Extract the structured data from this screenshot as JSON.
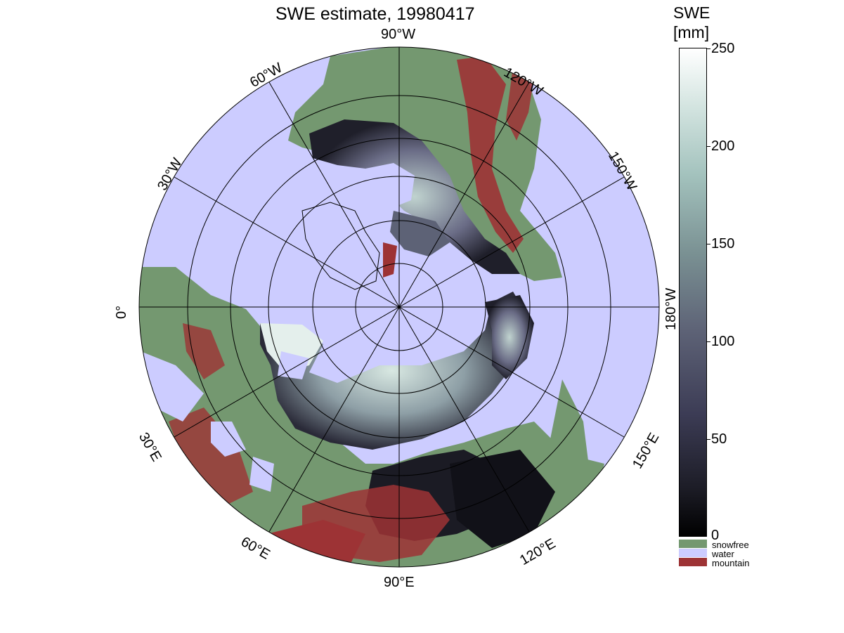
{
  "title": "SWE estimate, 19980417",
  "colorbar": {
    "title_line1": "SWE",
    "title_line2": "[mm]",
    "ticks": [
      "250",
      "200",
      "150",
      "100",
      "50",
      "0"
    ],
    "range": [
      0,
      250
    ],
    "colors": [
      "#000000",
      "#3c3c55",
      "#7a9193",
      "#d3e4e0",
      "#ffffff"
    ]
  },
  "legend": {
    "snowfree": {
      "label": "snowfree",
      "color": "#749870"
    },
    "water": {
      "label": "water",
      "color": "#ccccff"
    },
    "mountain": {
      "label": "mountain",
      "color": "#9d3335"
    }
  },
  "longitude_labels": {
    "w90": "90°W",
    "w120": "120°W",
    "w150": "150°W",
    "w180": "180°W",
    "w60": "60°W",
    "w30": "30°W",
    "lon0": "0°",
    "e30": "30°E",
    "e60": "60°E",
    "e90": "90°E",
    "e120": "120°E",
    "e150": "150°E"
  },
  "map": {
    "projection": "north polar stereographic",
    "water_color": "#ccccff",
    "snowfree_color": "#749870",
    "mountain_color": "#9d3335"
  }
}
